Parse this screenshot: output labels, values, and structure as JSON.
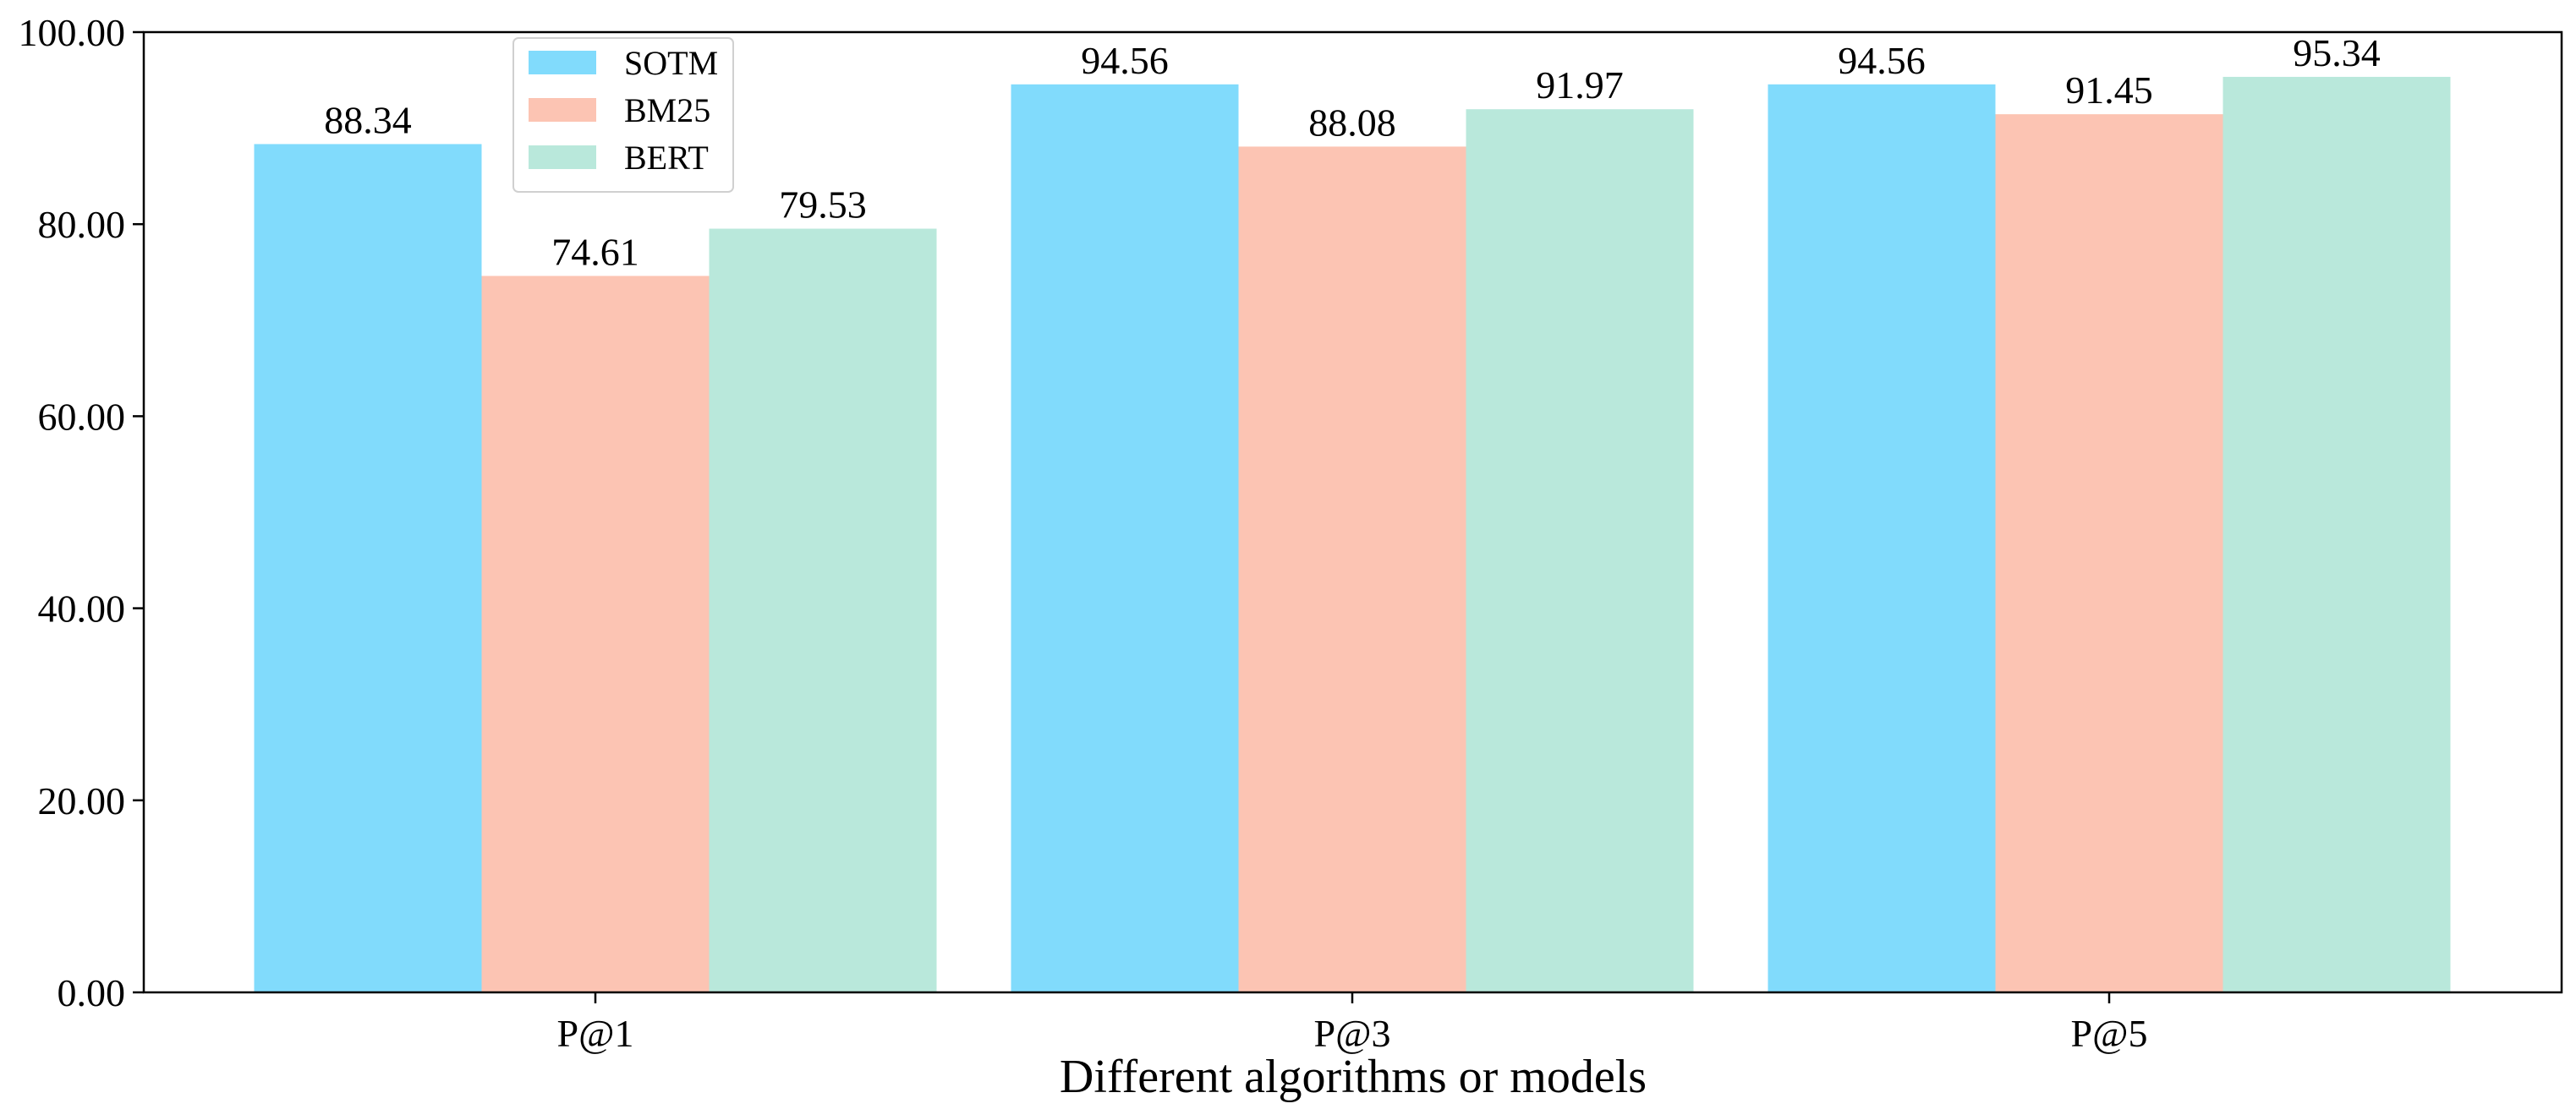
{
  "chart_data": {
    "type": "bar",
    "title": "",
    "xlabel": "Different algorithms or models",
    "ylabel": "",
    "categories": [
      "P@1",
      "P@3",
      "P@5"
    ],
    "series": [
      {
        "name": "SOTM",
        "color": "#81dbfc",
        "values": [
          88.34,
          94.56,
          94.56
        ],
        "labels": [
          "88.34",
          "94.56",
          "94.56"
        ]
      },
      {
        "name": "BM25",
        "color": "#fcc4b3",
        "values": [
          74.61,
          88.08,
          91.45
        ],
        "labels": [
          "74.61",
          "88.08",
          "91.45"
        ]
      },
      {
        "name": "BERT",
        "color": "#b9e8db",
        "values": [
          79.53,
          91.97,
          95.34
        ],
        "labels": [
          "79.53",
          "91.97",
          "95.34"
        ]
      }
    ],
    "ylim": [
      0,
      100
    ],
    "yticks": [
      0,
      20,
      40,
      60,
      80,
      100
    ],
    "ytick_labels": [
      "0.00",
      "20.00",
      "40.00",
      "60.00",
      "80.00",
      "100.00"
    ],
    "grid": false,
    "legend_position": "top-left"
  }
}
